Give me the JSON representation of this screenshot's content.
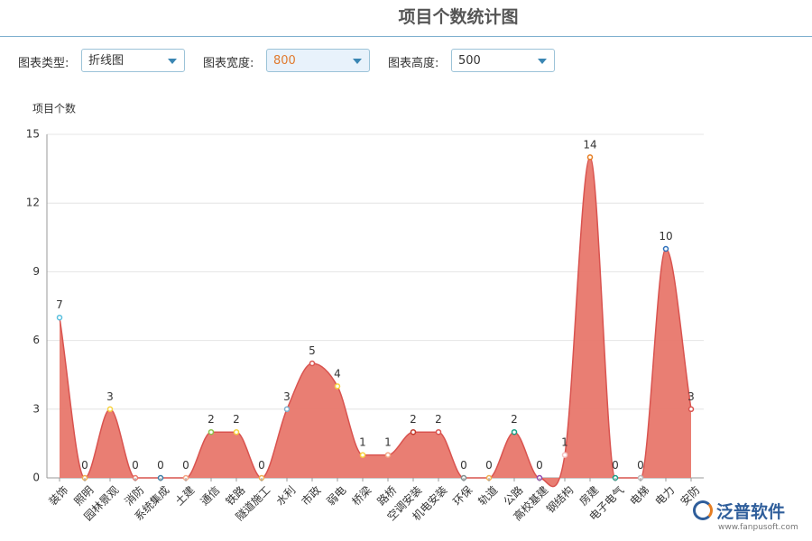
{
  "header": {
    "title": "项目个数统计图"
  },
  "controls": [
    {
      "label": "图表类型:",
      "value": "折线图"
    },
    {
      "label": "图表宽度:",
      "value": "800"
    },
    {
      "label": "图表高度:",
      "value": "500"
    }
  ],
  "chart_data": {
    "type": "line",
    "y_label": "项目个数",
    "categories": [
      "装饰",
      "照明",
      "园林景观",
      "消防",
      "系统集成",
      "土建",
      "通信",
      "铁路",
      "隧道施工",
      "水利",
      "市政",
      "弱电",
      "桥梁",
      "路桥",
      "空调安装",
      "机电安装",
      "环保",
      "轨道",
      "公路",
      "高校基建",
      "钢结构",
      "房建",
      "电子电气",
      "电梯",
      "电力",
      "安防"
    ],
    "series": [
      {
        "name": "项目个数",
        "color": "#d9534f",
        "fill": "#e8776b",
        "values": [
          7,
          0,
          3,
          0,
          0,
          0,
          2,
          2,
          0,
          3,
          5,
          4,
          1,
          1,
          2,
          2,
          0,
          0,
          2,
          0,
          1,
          14,
          0,
          0,
          10,
          3
        ]
      }
    ],
    "point_colors": [
      "#5bc0de",
      "#f0ad4e",
      "#f7d23e",
      "#e8776b",
      "#3a7ca5",
      "#f4a582",
      "#8bc34a",
      "#f7d23e",
      "#f0ad4e",
      "#7fb0cf",
      "#d9534f",
      "#f7d23e",
      "#f7d23e",
      "#f4a582",
      "#c0392b",
      "#d9534f",
      "#7f8c8d",
      "#f0ad4e",
      "#16a085",
      "#8e44ad",
      "#f4c2c2",
      "#e67e22",
      "#16a085",
      "#bbbbbb",
      "#2c6fbb",
      "#d9534f"
    ],
    "ylim": [
      0,
      15
    ],
    "yticks": [
      0,
      3,
      6,
      9,
      12,
      15
    ],
    "grid": true,
    "smooth": true,
    "data_labels": true
  },
  "footer": {
    "brand": "泛普软件",
    "url": "www.fanpusoft.com"
  }
}
